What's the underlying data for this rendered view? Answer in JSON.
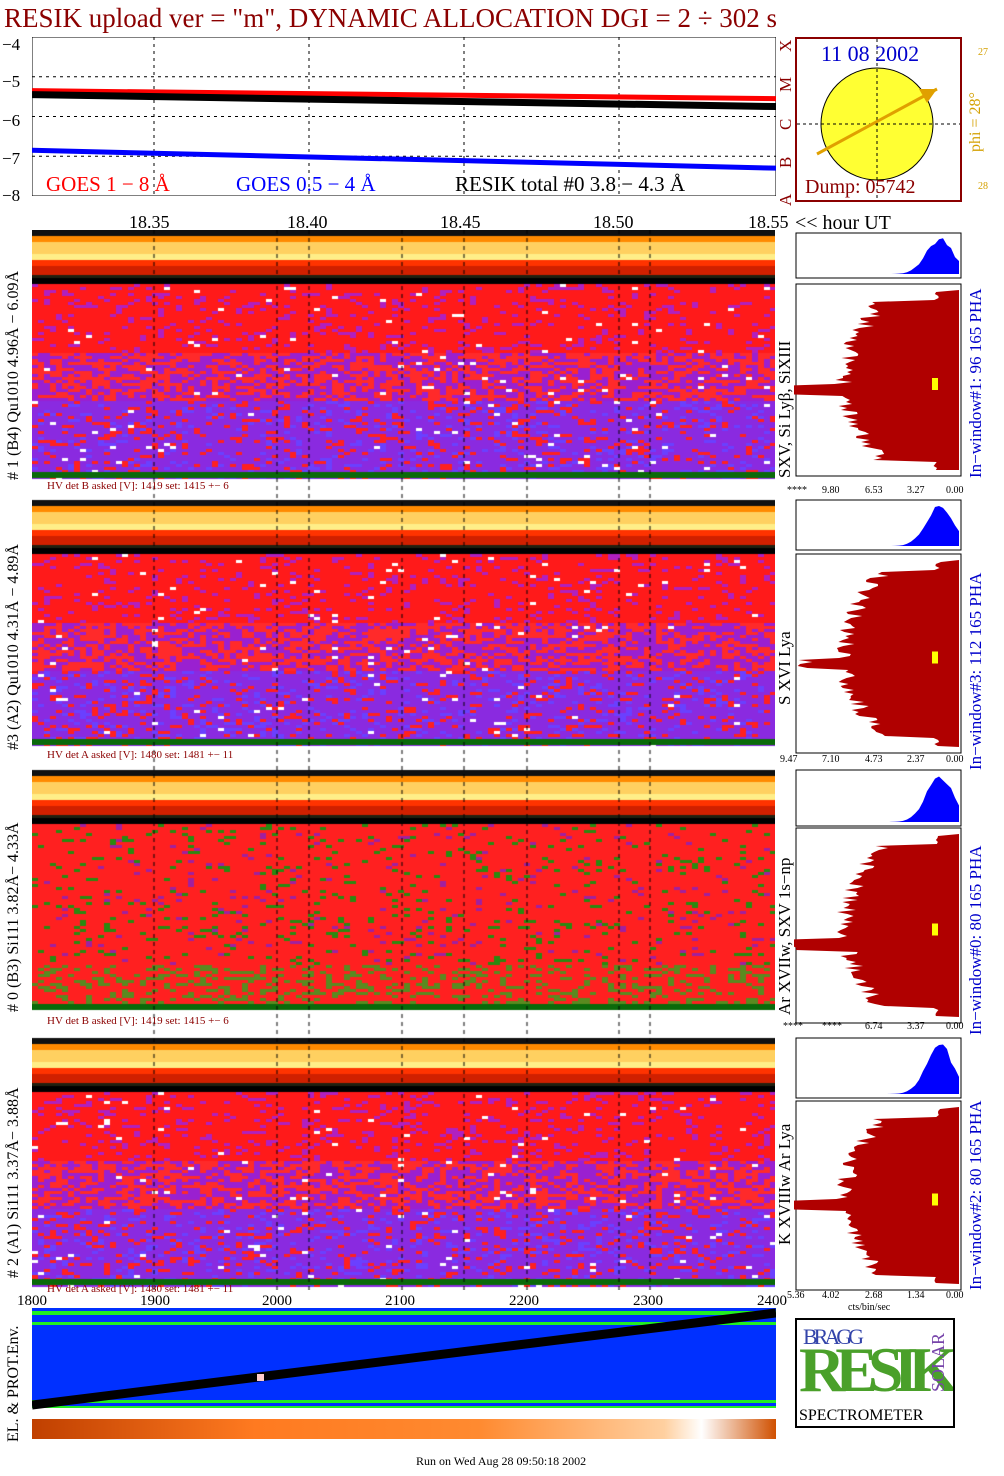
{
  "title": "RESIK upload ver = \"m\", DYNAMIC ALLOCATION  DGI =   2 ÷ 302 s",
  "goes": {
    "y_ticks": [
      "−4",
      "−5",
      "−6",
      "−7",
      "−8"
    ],
    "legend_red": "GOES 1 − 8 Å",
    "legend_blue": "GOES 0.5 − 4 Å",
    "legend_black": "RESIK total #0  3.8 − 4.3 Å",
    "class_labels": [
      "X",
      "M",
      "C",
      "B",
      "A"
    ]
  },
  "sun": {
    "date": "11 08 2002",
    "dump": "Dump: 05742",
    "phi": "phi = 28°",
    "phi_top": "27",
    "phi_bottom": "28"
  },
  "time_axis": {
    "ticks": [
      "18.35",
      "18.40",
      "18.45",
      "18.50",
      "18.55"
    ],
    "suffix": "<< hour UT"
  },
  "detectors": [
    {
      "label": "# 1 (B4) Qu1010 4.96Å − 6.09Å",
      "hv": "HV det B asked [V]:  1419 set:  1415 +−    6",
      "lines": "SXV, Si Lyβ, SiXIII",
      "window": "In−window#1:   96 165  PHA",
      "scale": [
        "****",
        "9.80",
        "6.53",
        "3.27",
        "0.00"
      ]
    },
    {
      "label": "#3 (A2) Qu1010  4.31Å − 4.89Å",
      "hv": "HV det A asked [V]:  1480 set:  1481 +−    11",
      "lines": "S XVI Lya",
      "window": "In−window#3:  112 165  PHA",
      "scale": [
        "9.47",
        "7.10",
        "4.73",
        "2.37",
        "0.00"
      ]
    },
    {
      "label": "# 0 (B3) Si111  3.82Å− 4.33Å",
      "hv": "HV det B asked [V]:  1419 set:  1415 +−    6",
      "lines": "Ar XVIIw,  SXV 1s−np",
      "window": "In−window#0:   80 165  PHA",
      "scale": [
        "****",
        "****",
        "6.74",
        "3.37",
        "0.00"
      ]
    },
    {
      "label": "# 2 (A1) Si111  3.37Å− 3.88Å",
      "hv": "HV det A asked [V]:  1480 set:  1481 +−    11",
      "lines": "K XVIIIw  Ar Lya",
      "window": "In−window#2:   80 165  PHA",
      "scale": [
        "5.36",
        "4.02",
        "2.68",
        "1.34",
        "0.00"
      ]
    }
  ],
  "bottom_axis": {
    "ticks": [
      "1800",
      "1900",
      "2000",
      "2100",
      "2200",
      "2300",
      "2400"
    ],
    "unit": "cts/bin/sec"
  },
  "env_label": "EL. & PROT.Env.",
  "logo": {
    "line1": "BRAGG",
    "main": "RESIK",
    "solar": "SOLAR",
    "bottom": "SPECTROMETER"
  },
  "footer": "Run on Wed Aug 28 09:50:18 2002",
  "colors": {
    "title": "#8b0000",
    "red": "#ff0000",
    "blue": "#0000ff",
    "goes_panel_border": "#8b0000",
    "sun": "#ffff33",
    "arrow": "#e0a000",
    "spectrum": "#b00000",
    "pha": "#0000ff"
  },
  "chart_data": [
    {
      "type": "line",
      "title": "",
      "ylabel": "",
      "ylim": [
        -8,
        -4
      ],
      "x": [
        18.3,
        18.55
      ],
      "series": [
        {
          "name": "GOES 1 − 8 Å",
          "values": [
            -5.35,
            -5.55
          ]
        },
        {
          "name": "GOES 0.5 − 4 Å",
          "values": [
            -6.85,
            -7.3
          ]
        },
        {
          "name": "RESIK total #0  3.8 − 4.3 Å",
          "values": [
            -5.45,
            -5.75
          ]
        }
      ]
    }
  ]
}
